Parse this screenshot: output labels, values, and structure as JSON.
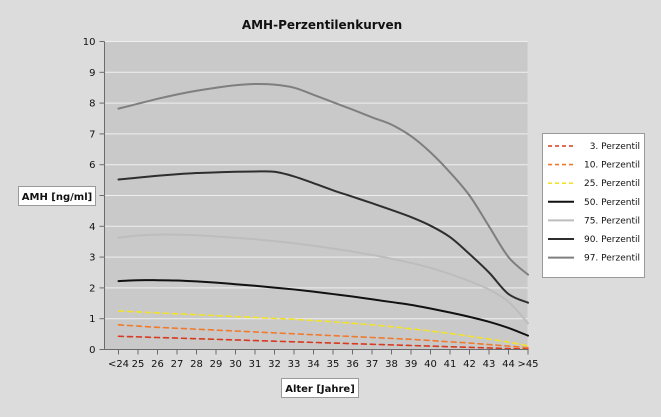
{
  "chart_data": {
    "type": "line",
    "title": "AMH-Perzentilenkurven",
    "xlabel": "Alter [Jahre]",
    "ylabel": "AMH [ng/ml]",
    "ylim": [
      0,
      10
    ],
    "yticks": [
      0,
      1,
      2,
      3,
      4,
      5,
      6,
      7,
      8,
      9,
      10
    ],
    "grid": true,
    "legend": "right",
    "categories": [
      "<24",
      "25",
      "26",
      "27",
      "28",
      "29",
      "30",
      "31",
      "32",
      "33",
      "34",
      "35",
      "36",
      "37",
      "38",
      "39",
      "40",
      "41",
      "42",
      "43",
      "44",
      ">45"
    ],
    "series": [
      {
        "name": "3. Perzentil",
        "color": "#d63a1f",
        "dash": "dashed",
        "values": [
          0.43,
          0.41,
          0.39,
          0.37,
          0.35,
          0.33,
          0.31,
          0.29,
          0.27,
          0.25,
          0.23,
          0.21,
          0.19,
          0.17,
          0.15,
          0.13,
          0.11,
          0.09,
          0.07,
          0.05,
          0.03,
          0.02
        ]
      },
      {
        "name": "10. Perzentil",
        "color": "#f07a2e",
        "dash": "dashed",
        "values": [
          0.8,
          0.76,
          0.72,
          0.69,
          0.66,
          0.63,
          0.6,
          0.57,
          0.54,
          0.51,
          0.48,
          0.45,
          0.42,
          0.39,
          0.36,
          0.33,
          0.29,
          0.25,
          0.21,
          0.16,
          0.11,
          0.06
        ]
      },
      {
        "name": "25. Perzentil",
        "color": "#f2e22a",
        "dash": "dashed",
        "values": [
          1.25,
          1.22,
          1.19,
          1.16,
          1.13,
          1.1,
          1.07,
          1.04,
          1.01,
          0.98,
          0.94,
          0.9,
          0.85,
          0.8,
          0.74,
          0.67,
          0.6,
          0.52,
          0.43,
          0.34,
          0.24,
          0.12
        ]
      },
      {
        "name": "50. Perzentil",
        "color": "#111111",
        "dash": "solid",
        "values": [
          2.22,
          2.25,
          2.25,
          2.24,
          2.21,
          2.17,
          2.12,
          2.07,
          2.01,
          1.95,
          1.88,
          1.8,
          1.72,
          1.63,
          1.54,
          1.45,
          1.33,
          1.2,
          1.06,
          0.9,
          0.7,
          0.45
        ]
      },
      {
        "name": "75. Perzentil",
        "color": "#bdbdbd",
        "dash": "solid",
        "values": [
          3.63,
          3.7,
          3.73,
          3.73,
          3.71,
          3.67,
          3.63,
          3.58,
          3.52,
          3.45,
          3.37,
          3.28,
          3.18,
          3.07,
          2.95,
          2.81,
          2.65,
          2.45,
          2.22,
          1.95,
          1.55,
          0.85
        ]
      },
      {
        "name": "90. Perzentil",
        "color": "#2e2e2e",
        "dash": "solid",
        "values": [
          5.52,
          5.58,
          5.64,
          5.69,
          5.73,
          5.75,
          5.77,
          5.78,
          5.77,
          5.62,
          5.4,
          5.17,
          4.96,
          4.75,
          4.53,
          4.3,
          4.02,
          3.65,
          3.1,
          2.5,
          1.8,
          1.52
        ]
      },
      {
        "name": "97. Perzentil",
        "color": "#7f7f7f",
        "dash": "solid",
        "values": [
          7.82,
          7.98,
          8.14,
          8.28,
          8.4,
          8.5,
          8.58,
          8.62,
          8.6,
          8.5,
          8.27,
          8.03,
          7.79,
          7.54,
          7.3,
          6.93,
          6.4,
          5.75,
          5.0,
          4.0,
          3.0,
          2.43
        ]
      }
    ]
  }
}
